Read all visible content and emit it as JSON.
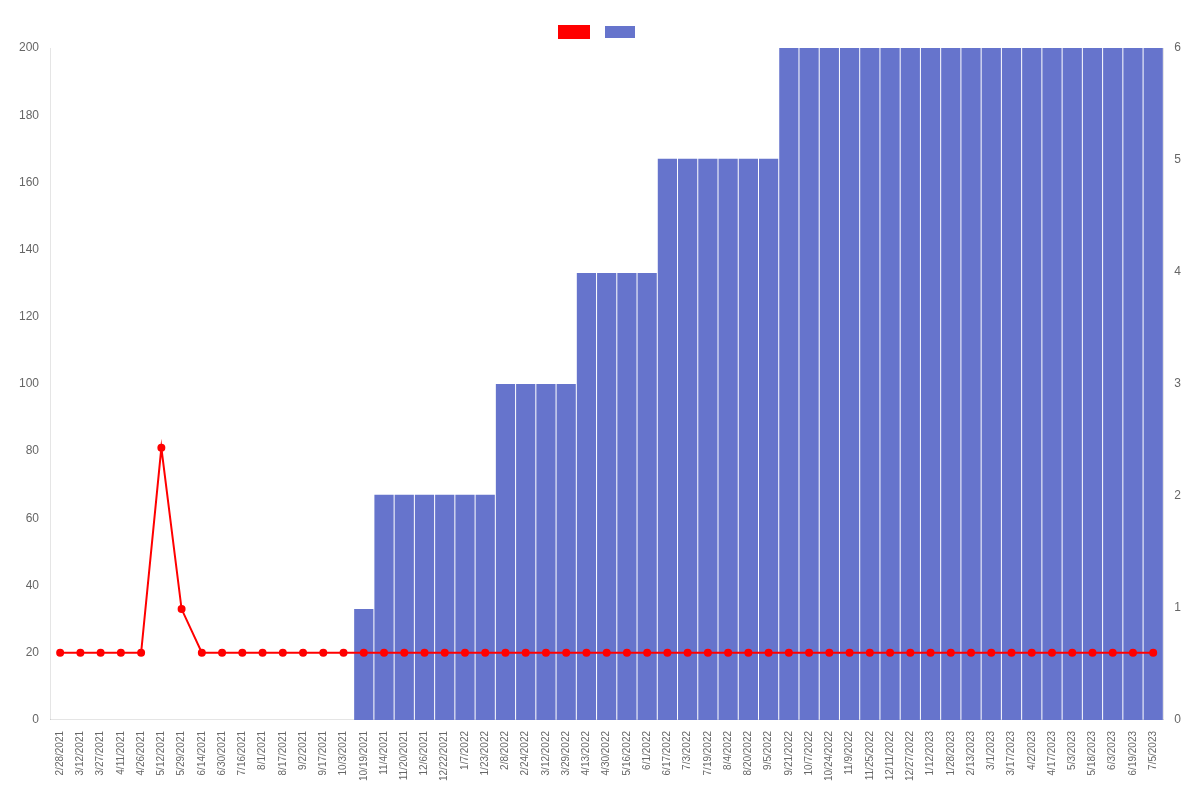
{
  "chart_data": {
    "type": "bar",
    "categories": [
      "2/28/2021",
      "3/12/2021",
      "3/27/2021",
      "4/11/2021",
      "4/26/2021",
      "5/12/2021",
      "5/29/2021",
      "6/14/2021",
      "6/30/2021",
      "7/16/2021",
      "8/1/2021",
      "8/17/2021",
      "9/2/2021",
      "9/17/2021",
      "10/3/2021",
      "10/19/2021",
      "11/4/2021",
      "11/20/2021",
      "12/6/2021",
      "12/22/2021",
      "1/7/2022",
      "1/23/2022",
      "2/8/2022",
      "2/24/2022",
      "3/12/2022",
      "3/29/2022",
      "4/13/2022",
      "4/30/2022",
      "5/16/2022",
      "6/1/2022",
      "6/17/2022",
      "7/3/2022",
      "7/19/2022",
      "8/4/2022",
      "8/20/2022",
      "9/5/2022",
      "9/21/2022",
      "10/7/2022",
      "10/24/2022",
      "11/9/2022",
      "11/25/2022",
      "12/11/2022",
      "12/27/2022",
      "1/12/2023",
      "1/28/2023",
      "2/13/2023",
      "3/1/2023",
      "3/17/2023",
      "4/2/2023",
      "4/17/2023",
      "5/3/2023",
      "5/18/2023",
      "6/3/2023",
      "6/19/2023",
      "7/5/2023"
    ],
    "series": [
      {
        "type": "bar",
        "color": "#6674cc",
        "values": [
          0,
          0,
          0,
          0,
          0,
          0,
          0,
          0,
          0,
          0,
          0,
          0,
          0,
          0,
          0,
          33,
          67,
          67,
          67,
          67,
          67,
          67,
          100,
          100,
          100,
          100,
          133,
          133,
          133,
          133,
          167,
          167,
          167,
          167,
          167,
          167,
          200,
          200,
          200,
          200,
          200,
          200,
          200,
          200,
          200,
          200,
          200,
          200,
          200,
          200,
          200,
          200,
          200,
          200,
          200
        ]
      },
      {
        "type": "line",
        "color": "#ff0000",
        "marker": "circle",
        "values": [
          20,
          20,
          20,
          20,
          20,
          81,
          33,
          20,
          20,
          20,
          20,
          20,
          20,
          20,
          20,
          20,
          20,
          20,
          20,
          20,
          20,
          20,
          20,
          20,
          20,
          20,
          20,
          20,
          20,
          20,
          20,
          20,
          20,
          20,
          20,
          20,
          20,
          20,
          20,
          20,
          20,
          20,
          20,
          20,
          20,
          20,
          20,
          20,
          20,
          20,
          20,
          20,
          20,
          20,
          20
        ]
      }
    ],
    "ylim": [
      0,
      200
    ],
    "yticks": [
      0,
      20,
      40,
      60,
      80,
      100,
      120,
      140,
      160,
      180,
      200
    ],
    "y2lim": [
      0,
      6
    ],
    "y2ticks": [
      0,
      1,
      2,
      3,
      4,
      5,
      6
    ],
    "grid": false,
    "legend": "top"
  }
}
